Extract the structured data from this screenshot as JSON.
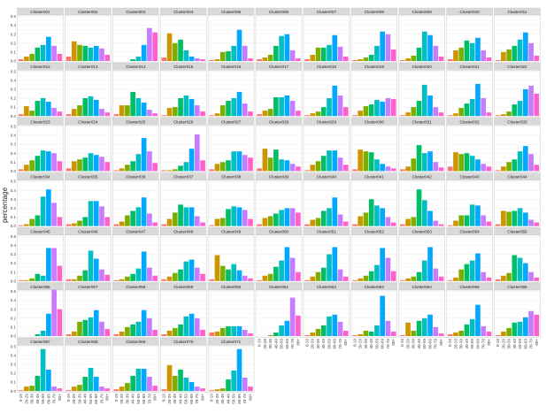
{
  "chart_data": {
    "type": "bar",
    "layout": "facet-grid",
    "ylabel": "percentage",
    "xlabel": "",
    "ylim": [
      0,
      0.5
    ],
    "yticks": [
      0.0,
      0.1,
      0.2,
      0.3,
      0.4,
      0.5
    ],
    "grid": true,
    "categories": [
      "0-19",
      "20-29",
      "30-39",
      "40-49",
      "50-59",
      "60-69",
      "70-79",
      "80+"
    ],
    "colors": [
      "#F8766D",
      "#CD9600",
      "#7CAE00",
      "#00BE67",
      "#00BFC4",
      "#00A9FF",
      "#C77CFF",
      "#FF61CC"
    ],
    "facets": [
      {
        "name": "Cluster001",
        "values": [
          0.02,
          0.05,
          0.08,
          0.15,
          0.18,
          0.27,
          0.17,
          0.08
        ]
      },
      {
        "name": "Cluster002",
        "values": [
          0.05,
          0.22,
          0.18,
          0.17,
          0.15,
          0.17,
          0.14,
          0.07
        ]
      },
      {
        "name": "Cluster003",
        "values": [
          0.0,
          0.0,
          0.0,
          0.02,
          0.05,
          0.18,
          0.37,
          0.32
        ]
      },
      {
        "name": "Cluster004",
        "values": [
          0.04,
          0.31,
          0.2,
          0.24,
          0.12,
          0.05,
          0.03,
          0.02
        ]
      },
      {
        "name": "Cluster005",
        "values": [
          0.01,
          0.02,
          0.1,
          0.11,
          0.17,
          0.35,
          0.17,
          0.03
        ]
      },
      {
        "name": "Cluster006",
        "values": [
          0.02,
          0.04,
          0.07,
          0.17,
          0.28,
          0.3,
          0.12,
          0.03
        ]
      },
      {
        "name": "Cluster007",
        "values": [
          0.02,
          0.07,
          0.15,
          0.15,
          0.18,
          0.29,
          0.16,
          0.05
        ]
      },
      {
        "name": "Cluster008",
        "values": [
          0.01,
          0.02,
          0.04,
          0.07,
          0.17,
          0.33,
          0.3,
          0.13
        ]
      },
      {
        "name": "Cluster009",
        "values": [
          0.01,
          0.03,
          0.06,
          0.15,
          0.33,
          0.29,
          0.17,
          0.05
        ]
      },
      {
        "name": "Cluster010",
        "values": [
          0.02,
          0.12,
          0.15,
          0.23,
          0.2,
          0.26,
          0.12,
          0.04
        ]
      },
      {
        "name": "Cluster011",
        "values": [
          0.01,
          0.1,
          0.13,
          0.17,
          0.24,
          0.32,
          0.2,
          0.06
        ]
      },
      {
        "name": "Cluster012",
        "values": [
          0.02,
          0.11,
          0.06,
          0.17,
          0.2,
          0.16,
          0.09,
          0.05
        ]
      },
      {
        "name": "Cluster013",
        "values": [
          0.02,
          0.08,
          0.12,
          0.2,
          0.22,
          0.18,
          0.08,
          0.04
        ]
      },
      {
        "name": "Cluster014",
        "values": [
          0.02,
          0.12,
          0.12,
          0.27,
          0.2,
          0.15,
          0.07,
          0.03
        ]
      },
      {
        "name": "Cluster015",
        "values": [
          0.01,
          0.09,
          0.1,
          0.2,
          0.23,
          0.19,
          0.12,
          0.05
        ]
      },
      {
        "name": "Cluster016",
        "values": [
          0.01,
          0.03,
          0.12,
          0.17,
          0.2,
          0.27,
          0.14,
          0.05
        ]
      },
      {
        "name": "Cluster017",
        "values": [
          0.02,
          0.06,
          0.08,
          0.21,
          0.21,
          0.23,
          0.17,
          0.06
        ]
      },
      {
        "name": "Cluster018",
        "values": [
          0.01,
          0.03,
          0.05,
          0.1,
          0.2,
          0.34,
          0.23,
          0.1
        ]
      },
      {
        "name": "Cluster019",
        "values": [
          0.01,
          0.06,
          0.11,
          0.13,
          0.18,
          0.16,
          0.2,
          0.19
        ]
      },
      {
        "name": "Cluster020",
        "values": [
          0.01,
          0.04,
          0.1,
          0.17,
          0.35,
          0.23,
          0.1,
          0.04
        ]
      },
      {
        "name": "Cluster021",
        "values": [
          0.01,
          0.03,
          0.09,
          0.14,
          0.19,
          0.36,
          0.2,
          0.04
        ]
      },
      {
        "name": "Cluster022",
        "values": [
          0.01,
          0.02,
          0.05,
          0.13,
          0.17,
          0.3,
          0.34,
          0.25
        ]
      },
      {
        "name": "Cluster023",
        "values": [
          0.02,
          0.07,
          0.12,
          0.17,
          0.23,
          0.22,
          0.2,
          0.11
        ]
      },
      {
        "name": "Cluster024",
        "values": [
          0.03,
          0.11,
          0.13,
          0.15,
          0.2,
          0.18,
          0.16,
          0.1
        ]
      },
      {
        "name": "Cluster025",
        "values": [
          0.01,
          0.03,
          0.07,
          0.11,
          0.19,
          0.37,
          0.22,
          0.09
        ]
      },
      {
        "name": "Cluster026",
        "values": [
          0.01,
          0.01,
          0.02,
          0.06,
          0.1,
          0.25,
          0.41,
          0.12
        ]
      },
      {
        "name": "Cluster027",
        "values": [
          0.02,
          0.08,
          0.1,
          0.12,
          0.22,
          0.22,
          0.18,
          0.15
        ]
      },
      {
        "name": "Cluster028",
        "values": [
          0.03,
          0.25,
          0.15,
          0.24,
          0.13,
          0.12,
          0.08,
          0.05
        ]
      },
      {
        "name": "Cluster029",
        "values": [
          0.01,
          0.07,
          0.11,
          0.17,
          0.23,
          0.23,
          0.15,
          0.07
        ]
      },
      {
        "name": "Cluster030",
        "values": [
          0.02,
          0.24,
          0.22,
          0.21,
          0.13,
          0.08,
          0.05,
          0.03
        ]
      },
      {
        "name": "Cluster031",
        "values": [
          0.02,
          0.05,
          0.14,
          0.29,
          0.2,
          0.22,
          0.1,
          0.04
        ]
      },
      {
        "name": "Cluster032",
        "values": [
          0.05,
          0.21,
          0.19,
          0.2,
          0.17,
          0.13,
          0.08,
          0.05
        ]
      },
      {
        "name": "Cluster033",
        "values": [
          0.01,
          0.05,
          0.1,
          0.13,
          0.22,
          0.28,
          0.19,
          0.07
        ]
      },
      {
        "name": "Cluster034",
        "values": [
          0.01,
          0.02,
          0.08,
          0.12,
          0.33,
          0.41,
          0.26,
          0.1
        ]
      },
      {
        "name": "Cluster035",
        "values": [
          0.02,
          0.03,
          0.06,
          0.1,
          0.28,
          0.28,
          0.22,
          0.1
        ]
      },
      {
        "name": "Cluster036",
        "values": [
          0.02,
          0.05,
          0.12,
          0.17,
          0.21,
          0.32,
          0.14,
          0.04
        ]
      },
      {
        "name": "Cluster037",
        "values": [
          0.02,
          0.08,
          0.15,
          0.24,
          0.21,
          0.21,
          0.11,
          0.04
        ]
      },
      {
        "name": "Cluster038",
        "values": [
          0.01,
          0.08,
          0.09,
          0.19,
          0.22,
          0.21,
          0.18,
          0.08
        ]
      },
      {
        "name": "Cluster039",
        "values": [
          0.02,
          0.09,
          0.11,
          0.14,
          0.18,
          0.2,
          0.2,
          0.15
        ]
      },
      {
        "name": "Cluster040",
        "values": [
          0.02,
          0.07,
          0.09,
          0.17,
          0.2,
          0.32,
          0.13,
          0.05
        ]
      },
      {
        "name": "Cluster041",
        "values": [
          0.02,
          0.11,
          0.15,
          0.3,
          0.23,
          0.2,
          0.1,
          0.04
        ]
      },
      {
        "name": "Cluster042",
        "values": [
          0.02,
          0.08,
          0.1,
          0.41,
          0.29,
          0.17,
          0.06,
          0.02
        ]
      },
      {
        "name": "Cluster043",
        "values": [
          0.01,
          0.06,
          0.12,
          0.12,
          0.24,
          0.23,
          0.12,
          0.05
        ]
      },
      {
        "name": "Cluster044",
        "values": [
          0.02,
          0.17,
          0.16,
          0.17,
          0.2,
          0.15,
          0.07,
          0.04
        ]
      },
      {
        "name": "Cluster045",
        "values": [
          0.01,
          0.01,
          0.03,
          0.08,
          0.06,
          0.37,
          0.37,
          0.17
        ]
      },
      {
        "name": "Cluster046",
        "values": [
          0.02,
          0.02,
          0.06,
          0.12,
          0.34,
          0.25,
          0.13,
          0.07
        ]
      },
      {
        "name": "Cluster047",
        "values": [
          0.01,
          0.02,
          0.05,
          0.08,
          0.14,
          0.33,
          0.15,
          0.06
        ]
      },
      {
        "name": "Cluster048",
        "values": [
          0.02,
          0.05,
          0.09,
          0.13,
          0.22,
          0.24,
          0.15,
          0.08
        ]
      },
      {
        "name": "Cluster049",
        "values": [
          0.02,
          0.29,
          0.17,
          0.13,
          0.19,
          0.12,
          0.06,
          0.03
        ]
      },
      {
        "name": "Cluster050",
        "values": [
          0.01,
          0.06,
          0.08,
          0.16,
          0.23,
          0.38,
          0.26,
          0.1
        ]
      },
      {
        "name": "Cluster051",
        "values": [
          0.01,
          0.05,
          0.1,
          0.15,
          0.3,
          0.38,
          0.13,
          0.05
        ]
      },
      {
        "name": "Cluster052",
        "values": [
          0.01,
          0.03,
          0.06,
          0.11,
          0.18,
          0.37,
          0.26,
          0.11
        ]
      },
      {
        "name": "Cluster053",
        "values": [
          0.01,
          0.03,
          0.05,
          0.1,
          0.23,
          0.38,
          0.14,
          0.05
        ]
      },
      {
        "name": "Cluster054",
        "values": [
          0.01,
          0.04,
          0.13,
          0.19,
          0.23,
          0.31,
          0.1,
          0.04
        ]
      },
      {
        "name": "Cluster055",
        "values": [
          0.02,
          0.06,
          0.09,
          0.29,
          0.26,
          0.2,
          0.1,
          0.04
        ]
      },
      {
        "name": "Cluster056",
        "values": [
          0.0,
          0.0,
          0.0,
          0.02,
          0.06,
          0.25,
          0.52,
          0.3
        ]
      },
      {
        "name": "Cluster057",
        "values": [
          0.02,
          0.05,
          0.16,
          0.18,
          0.21,
          0.29,
          0.16,
          0.08
        ]
      },
      {
        "name": "Cluster058",
        "values": [
          0.02,
          0.05,
          0.1,
          0.13,
          0.16,
          0.29,
          0.2,
          0.07
        ]
      },
      {
        "name": "Cluster059",
        "values": [
          0.02,
          0.06,
          0.09,
          0.13,
          0.22,
          0.25,
          0.2,
          0.07
        ]
      },
      {
        "name": "Cluster060",
        "values": [
          0.04,
          0.05,
          0.09,
          0.11,
          0.11,
          0.11,
          0.07,
          0.03
        ]
      },
      {
        "name": "Cluster061",
        "values": [
          0.0,
          0.0,
          0.01,
          0.04,
          0.12,
          0.17,
          0.43,
          0.23
        ]
      },
      {
        "name": "Cluster062",
        "values": [
          0.01,
          0.04,
          0.08,
          0.12,
          0.22,
          0.24,
          0.16,
          0.06
        ]
      },
      {
        "name": "Cluster063",
        "values": [
          0.01,
          0.02,
          0.06,
          0.05,
          0.12,
          0.45,
          0.17,
          0.05
        ]
      },
      {
        "name": "Cluster064",
        "values": [
          0.01,
          0.15,
          0.06,
          0.17,
          0.2,
          0.24,
          0.1,
          0.03
        ]
      },
      {
        "name": "Cluster065",
        "values": [
          0.02,
          0.04,
          0.06,
          0.13,
          0.19,
          0.35,
          0.11,
          0.05
        ]
      },
      {
        "name": "Cluster066",
        "values": [
          0.01,
          0.05,
          0.09,
          0.15,
          0.16,
          0.21,
          0.28,
          0.24
        ]
      },
      {
        "name": "Cluster067",
        "values": [
          0.01,
          0.05,
          0.06,
          0.17,
          0.47,
          0.24,
          0.05,
          0.03
        ]
      },
      {
        "name": "Cluster068",
        "values": [
          0.01,
          0.05,
          0.07,
          0.16,
          0.26,
          0.16,
          0.05,
          0.03
        ]
      },
      {
        "name": "Cluster069",
        "values": [
          0.02,
          0.05,
          0.09,
          0.17,
          0.25,
          0.25,
          0.16,
          0.06
        ]
      },
      {
        "name": "Cluster070",
        "values": [
          0.02,
          0.29,
          0.17,
          0.24,
          0.15,
          0.1,
          0.05,
          0.03
        ]
      },
      {
        "name": "Cluster071",
        "values": [
          0.01,
          0.02,
          0.03,
          0.13,
          0.23,
          0.47,
          0.15,
          0.05
        ]
      }
    ]
  }
}
